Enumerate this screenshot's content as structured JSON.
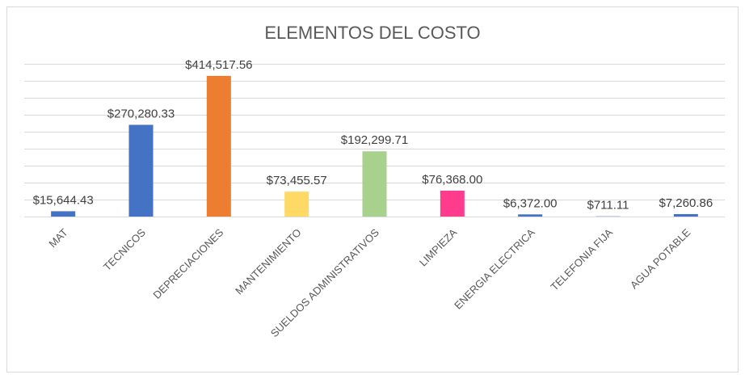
{
  "chart_data": {
    "type": "bar",
    "title": "ELEMENTOS DEL COSTO",
    "categories": [
      "MAT",
      "TECNICOS",
      "DEPRECIACIONES",
      "MANTENIMIENTO",
      "SUELDOS ADMINISTRATIVOS",
      "LIMPIEZA",
      "ENERGIA ELECTRICA",
      "TELEFONIA FIJA",
      "AGUA POTABLE"
    ],
    "values": [
      15644.43,
      270280.33,
      414517.56,
      73455.57,
      192299.71,
      76368.0,
      6372.0,
      711.11,
      7260.86
    ],
    "value_labels": [
      "$15,644.43",
      "$270,280.33",
      "$414,517.56",
      "$73,455.57",
      "$192,299.71",
      "$76,368.00",
      "$6,372.00",
      "$711.11",
      "$7,260.86"
    ],
    "colors": [
      "#4472c4",
      "#4472c4",
      "#ed7d31",
      "#ffd966",
      "#a9d18e",
      "#ff3b8d",
      "#4472c4",
      "#4472c4",
      "#4472c4"
    ],
    "ylim": [
      0,
      450000
    ],
    "yticks": [
      0,
      50000,
      100000,
      150000,
      200000,
      250000,
      300000,
      350000,
      400000,
      450000
    ],
    "grid": true
  }
}
